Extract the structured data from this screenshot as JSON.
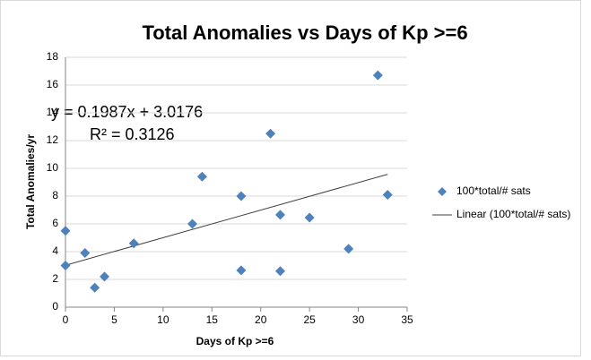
{
  "chart_data": {
    "type": "scatter",
    "title": "Total Anomalies vs Days of Kp >=6",
    "x_label": "Days of Kp >=6",
    "y_label": "Total Anomalies/yr",
    "series": [
      {
        "name": "100*total/# sats",
        "color": "#4f81bd",
        "x": [
          0,
          0,
          2,
          3,
          4,
          7,
          13,
          14,
          18,
          18,
          21,
          22,
          22,
          25,
          29,
          32,
          33
        ],
        "values": [
          3.0,
          5.5,
          3.9,
          1.4,
          2.2,
          4.6,
          6.0,
          9.4,
          8.0,
          2.65,
          12.5,
          6.65,
          2.6,
          6.45,
          4.2,
          16.7,
          8.1
        ]
      }
    ],
    "trendline": {
      "name": "Linear (100*total/# sats)",
      "slope": 0.1987,
      "intercept": 3.0176,
      "equation": "y = 0.1987x + 3.0176",
      "r_squared": "R² = 0.3126",
      "color": "#404040"
    },
    "xlim": [
      0,
      35
    ],
    "xticks": [
      0,
      5,
      10,
      15,
      20,
      25,
      30,
      35
    ],
    "ylim": [
      0,
      18
    ],
    "yticks": [
      0,
      2,
      4,
      6,
      8,
      10,
      12,
      14,
      16,
      18
    ],
    "grid": true,
    "legend": "right"
  }
}
